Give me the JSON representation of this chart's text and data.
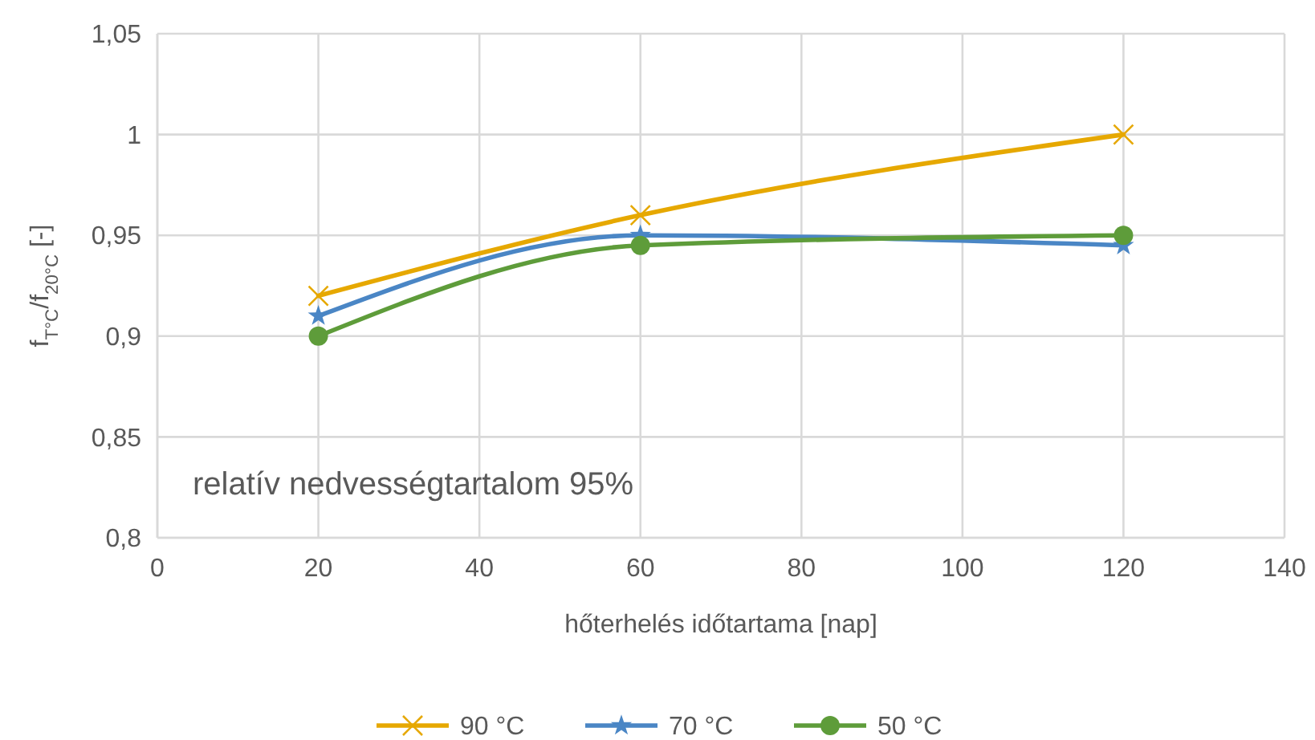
{
  "chart_data": {
    "type": "line",
    "xlabel": "hőterhelés időtartama [nap]",
    "ylabel": "f$_{T°C}$/f$_{20°C}$ [-]",
    "x": [
      20,
      60,
      120
    ],
    "series": [
      {
        "name": "90 °C",
        "color": "#e6a800",
        "values": [
          0.92,
          0.96,
          1.0
        ],
        "marker": "cross"
      },
      {
        "name": "70 °C",
        "color": "#4a86c5",
        "values": [
          0.91,
          0.95,
          0.945
        ],
        "marker": "star"
      },
      {
        "name": "50 °C",
        "color": "#5e9c3a",
        "values": [
          0.9,
          0.945,
          0.95
        ],
        "marker": "circle"
      }
    ],
    "xlim": [
      0,
      140
    ],
    "xticks": [
      0,
      20,
      40,
      60,
      80,
      100,
      120,
      140
    ],
    "ylim": [
      0.8,
      1.05
    ],
    "yticks": [
      {
        "value": 0.8,
        "label": "0,8"
      },
      {
        "value": 0.85,
        "label": "0,85"
      },
      {
        "value": 0.9,
        "label": "0,9"
      },
      {
        "value": 0.95,
        "label": "0,95"
      },
      1,
      {
        "value": 1.05,
        "label": "1,05"
      }
    ],
    "grid": true,
    "legend": "bottom",
    "line_style": "solid",
    "annotations": [
      "relatív nedvességtartalom 95%"
    ]
  }
}
